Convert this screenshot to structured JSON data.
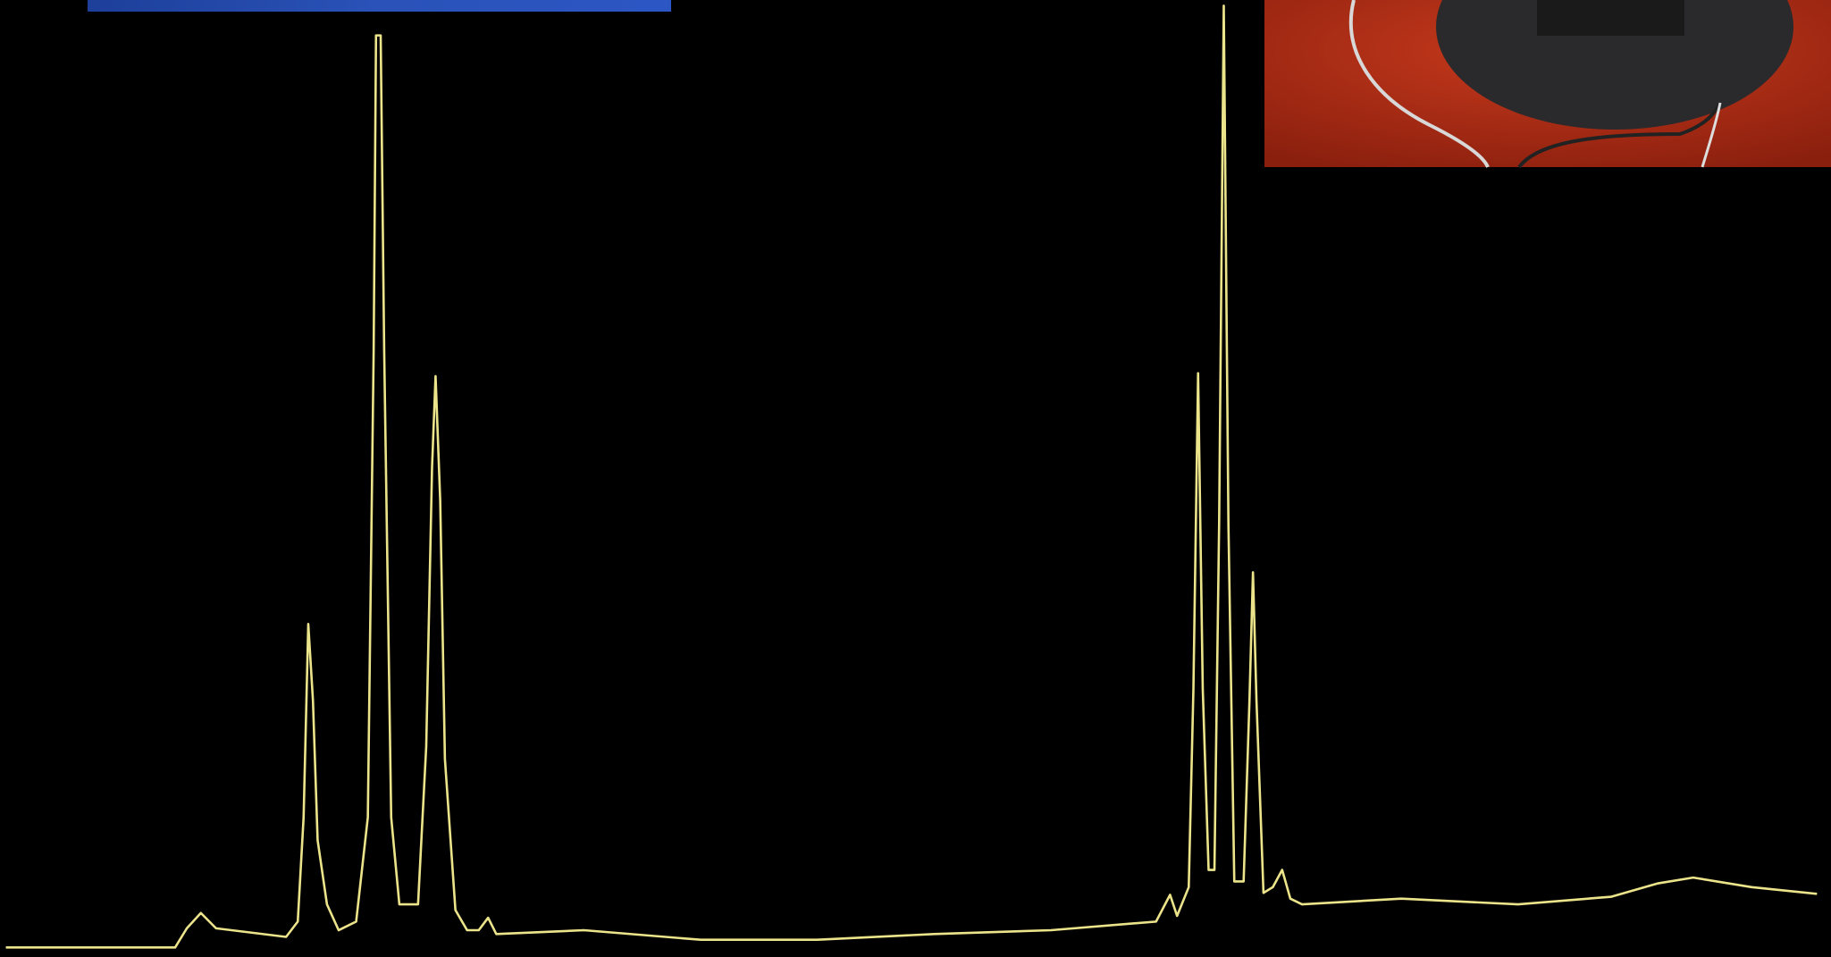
{
  "chart_data": {
    "type": "line",
    "x": [
      5,
      150,
      160,
      172,
      185,
      245,
      255,
      260,
      264,
      268,
      272,
      280,
      290,
      305,
      315,
      320,
      322,
      326,
      329,
      335,
      342,
      358,
      365,
      370,
      373,
      377,
      381,
      390,
      400,
      410,
      418,
      425,
      500,
      600,
      700,
      800,
      900,
      990,
      1002,
      1008,
      1018,
      1022,
      1026,
      1030,
      1035,
      1040,
      1044,
      1048,
      1052,
      1057,
      1065,
      1070,
      1073,
      1076,
      1082,
      1090,
      1098,
      1105,
      1115,
      1200,
      1300,
      1380,
      1420,
      1450,
      1500,
      1556
    ],
    "values": [
      1.0,
      1.0,
      3.0,
      4.6,
      3.0,
      2.1,
      3.7,
      14.6,
      34.8,
      26.8,
      12.2,
      5.5,
      2.8,
      3.7,
      14.6,
      63.4,
      96.3,
      96.3,
      63.4,
      14.6,
      5.5,
      5.5,
      22.0,
      51.2,
      60.7,
      47.6,
      20.7,
      4.9,
      2.8,
      2.8,
      4.1,
      2.4,
      2.8,
      1.8,
      1.8,
      2.4,
      2.8,
      3.7,
      6.5,
      4.3,
      7.3,
      28.0,
      61.0,
      28.0,
      9.1,
      9.1,
      45.1,
      99.4,
      45.1,
      7.9,
      7.9,
      26.8,
      40.2,
      26.8,
      6.7,
      7.3,
      9.1,
      6.1,
      5.5,
      6.1,
      5.5,
      6.3,
      7.7,
      8.3,
      7.3,
      6.6
    ],
    "xlim": [
      0,
      1568
    ],
    "ylim": [
      0,
      100
    ],
    "color": "#ece48a"
  }
}
